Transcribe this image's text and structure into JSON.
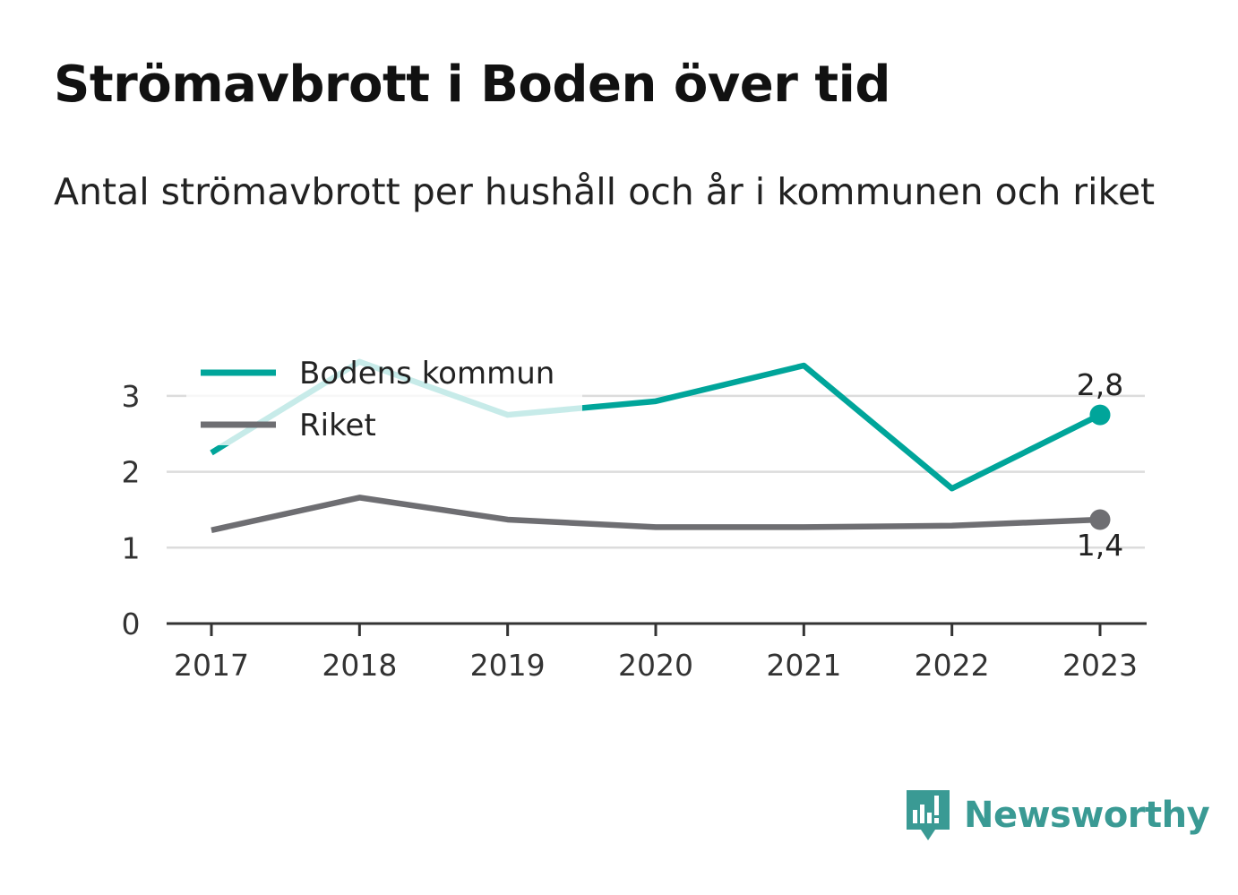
{
  "title": "Strömavbrott i Boden över tid",
  "subtitle": "Antal strömavbrott per hushåll och år i kommunen och riket",
  "brand": {
    "name": "Newsworthy",
    "icon": "bar-chart-speech-bubble-icon",
    "color": "#3a9a94"
  },
  "chart_data": {
    "type": "line",
    "x": [
      "2017",
      "2018",
      "2019",
      "2020",
      "2021",
      "2022",
      "2023"
    ],
    "yticks": [
      "0",
      "1",
      "2",
      "3"
    ],
    "ylim": [
      0,
      3.5
    ],
    "grid": true,
    "legend_position": "top-left",
    "series": [
      {
        "name": "Bodens kommun",
        "color": "#00a59a",
        "values": [
          2.25,
          3.45,
          2.75,
          2.93,
          3.4,
          1.78,
          2.75
        ],
        "end_label": "2,8"
      },
      {
        "name": "Riket",
        "color": "#6e6e72",
        "values": [
          1.23,
          1.66,
          1.37,
          1.27,
          1.27,
          1.29,
          1.37
        ],
        "end_label": "1,4"
      }
    ]
  }
}
